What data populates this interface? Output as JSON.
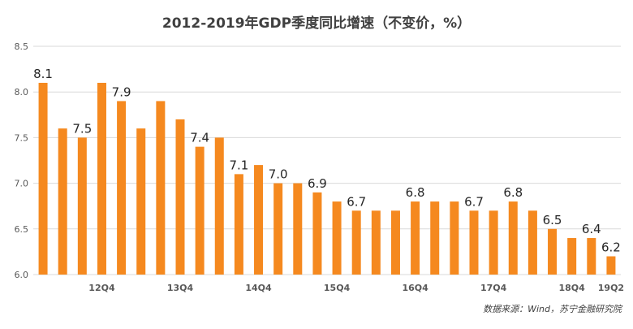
{
  "chart_data": {
    "type": "bar",
    "title": "2012-2019年GDP季度同比增速（不变价，%）",
    "source": "数据来源：Wind，苏宁金融研究院",
    "ylim": [
      6.0,
      8.5
    ],
    "yticks": [
      "6.0",
      "6.5",
      "7.0",
      "7.5",
      "8.0",
      "8.5"
    ],
    "grid": true,
    "bar_color": "#F5891F",
    "values": [
      8.1,
      7.6,
      7.5,
      8.1,
      7.9,
      7.6,
      7.9,
      7.7,
      7.4,
      7.5,
      7.1,
      7.2,
      7.0,
      7.0,
      6.9,
      6.8,
      6.7,
      6.7,
      6.7,
      6.8,
      6.8,
      6.8,
      6.7,
      6.7,
      6.8,
      6.7,
      6.5,
      6.4,
      6.4,
      6.2
    ],
    "value_labels": {
      "0": "8.1",
      "2": "7.5",
      "4": "7.9",
      "8": "7.4",
      "10": "7.1",
      "12": "7.0",
      "14": "6.9",
      "16": "6.7",
      "19": "6.8",
      "22": "6.7",
      "24": "6.8",
      "26": "6.5",
      "28": "6.4",
      "29": "6.2"
    },
    "x_tick_labels": {
      "3": "12Q4",
      "7": "13Q4",
      "11": "14Q4",
      "15": "15Q4",
      "19": "16Q4",
      "23": "17Q4",
      "27": "18Q4",
      "29": "19Q2"
    }
  }
}
